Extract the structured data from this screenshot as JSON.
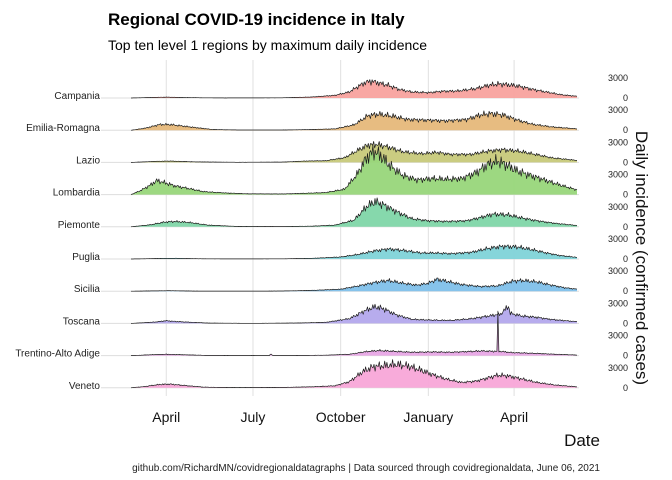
{
  "chart_data": {
    "type": "area",
    "title": "Regional COVID-19 incidence in Italy",
    "subtitle": "Top ten level 1 regions by maximum daily incidence",
    "xlabel": "Date",
    "ylabel": "Daily incidence (confirmed cases)",
    "caption": "github.com/RichardMN/covidregionaldatagraphs | Data sourced through covidregionaldata, June 06, 2021",
    "date_range": [
      "2020-02-24",
      "2021-06-06"
    ],
    "x_ticks": [
      {
        "date": "2020-04-01",
        "label": "April"
      },
      {
        "date": "2020-07-01",
        "label": "July"
      },
      {
        "date": "2020-10-01",
        "label": "October"
      },
      {
        "date": "2021-01-01",
        "label": "January"
      },
      {
        "date": "2021-04-01",
        "label": "April"
      }
    ],
    "y_ticks": [
      0,
      3000
    ],
    "y_tick_labels": [
      "0",
      "3000"
    ],
    "grid": true,
    "series": [
      {
        "name": "Campania",
        "color": "#f8a29e",
        "points": [
          [
            "2020-02-24",
            0
          ],
          [
            "2020-03-20",
            90
          ],
          [
            "2020-04-01",
            130
          ],
          [
            "2020-04-20",
            60
          ],
          [
            "2020-06-01",
            8
          ],
          [
            "2020-08-01",
            30
          ],
          [
            "2020-09-01",
            150
          ],
          [
            "2020-09-25",
            400
          ],
          [
            "2020-10-10",
            900
          ],
          [
            "2020-10-20",
            1800
          ],
          [
            "2020-10-28",
            2400
          ],
          [
            "2020-11-03",
            2500
          ],
          [
            "2020-11-10",
            2250
          ],
          [
            "2020-11-20",
            1900
          ],
          [
            "2020-12-01",
            1300
          ],
          [
            "2020-12-15",
            900
          ],
          [
            "2021-01-01",
            800
          ],
          [
            "2021-01-15",
            1000
          ],
          [
            "2021-02-01",
            1050
          ],
          [
            "2021-02-20",
            1400
          ],
          [
            "2021-03-05",
            1900
          ],
          [
            "2021-03-15",
            2100
          ],
          [
            "2021-03-25",
            2000
          ],
          [
            "2021-04-05",
            1800
          ],
          [
            "2021-04-20",
            1300
          ],
          [
            "2021-05-05",
            900
          ],
          [
            "2021-05-20",
            500
          ],
          [
            "2021-06-06",
            250
          ]
        ]
      },
      {
        "name": "Emilia-Romagna",
        "color": "#e6b87a",
        "points": [
          [
            "2020-02-24",
            0
          ],
          [
            "2020-03-10",
            300
          ],
          [
            "2020-03-25",
            850
          ],
          [
            "2020-04-05",
            850
          ],
          [
            "2020-04-25",
            500
          ],
          [
            "2020-05-20",
            100
          ],
          [
            "2020-06-15",
            30
          ],
          [
            "2020-08-01",
            30
          ],
          [
            "2020-09-01",
            100
          ],
          [
            "2020-09-25",
            200
          ],
          [
            "2020-10-15",
            800
          ],
          [
            "2020-10-30",
            2200
          ],
          [
            "2020-11-10",
            2400
          ],
          [
            "2020-11-25",
            2100
          ],
          [
            "2020-12-10",
            1600
          ],
          [
            "2021-01-01",
            1500
          ],
          [
            "2021-01-20",
            1400
          ],
          [
            "2021-02-10",
            1600
          ],
          [
            "2021-02-25",
            2300
          ],
          [
            "2021-03-08",
            2500
          ],
          [
            "2021-03-20",
            2300
          ],
          [
            "2021-04-05",
            1500
          ],
          [
            "2021-04-20",
            900
          ],
          [
            "2021-05-10",
            500
          ],
          [
            "2021-06-06",
            200
          ]
        ]
      },
      {
        "name": "Lazio",
        "color": "#c7c97a",
        "points": [
          [
            "2020-02-24",
            0
          ],
          [
            "2020-03-20",
            150
          ],
          [
            "2020-04-05",
            200
          ],
          [
            "2020-05-01",
            80
          ],
          [
            "2020-06-15",
            20
          ],
          [
            "2020-08-01",
            50
          ],
          [
            "2020-08-25",
            200
          ],
          [
            "2020-09-15",
            250
          ],
          [
            "2020-10-05",
            700
          ],
          [
            "2020-10-20",
            1900
          ],
          [
            "2020-10-30",
            2600
          ],
          [
            "2020-11-08",
            2700
          ],
          [
            "2020-11-20",
            2300
          ],
          [
            "2020-12-05",
            1600
          ],
          [
            "2020-12-25",
            1300
          ],
          [
            "2021-01-10",
            1500
          ],
          [
            "2021-01-25",
            1200
          ],
          [
            "2021-02-15",
            1200
          ],
          [
            "2021-03-05",
            1700
          ],
          [
            "2021-03-20",
            1900
          ],
          [
            "2021-04-05",
            1700
          ],
          [
            "2021-04-20",
            1300
          ],
          [
            "2021-05-10",
            700
          ],
          [
            "2021-06-06",
            300
          ]
        ]
      },
      {
        "name": "Lombardia",
        "color": "#98d67a",
        "points": [
          [
            "2020-02-24",
            0
          ],
          [
            "2020-03-05",
            600
          ],
          [
            "2020-03-15",
            1400
          ],
          [
            "2020-03-22",
            2100
          ],
          [
            "2020-03-30",
            1800
          ],
          [
            "2020-04-10",
            1300
          ],
          [
            "2020-04-25",
            900
          ],
          [
            "2020-05-10",
            450
          ],
          [
            "2020-06-01",
            250
          ],
          [
            "2020-06-25",
            120
          ],
          [
            "2020-08-01",
            100
          ],
          [
            "2020-08-25",
            200
          ],
          [
            "2020-09-15",
            300
          ],
          [
            "2020-10-05",
            800
          ],
          [
            "2020-10-18",
            3000
          ],
          [
            "2020-10-28",
            5500
          ],
          [
            "2020-11-05",
            6500
          ],
          [
            "2020-11-12",
            5800
          ],
          [
            "2020-11-22",
            4300
          ],
          [
            "2020-12-05",
            2900
          ],
          [
            "2020-12-20",
            2200
          ],
          [
            "2021-01-05",
            2400
          ],
          [
            "2021-01-20",
            2300
          ],
          [
            "2021-02-05",
            2400
          ],
          [
            "2021-02-20",
            3300
          ],
          [
            "2021-03-05",
            4600
          ],
          [
            "2021-03-15",
            5000
          ],
          [
            "2021-03-25",
            4400
          ],
          [
            "2021-04-05",
            3500
          ],
          [
            "2021-04-20",
            2800
          ],
          [
            "2021-05-05",
            2100
          ],
          [
            "2021-05-20",
            1400
          ],
          [
            "2021-06-06",
            700
          ]
        ]
      },
      {
        "name": "Piemonte",
        "color": "#7fd6a8",
        "points": [
          [
            "2020-02-24",
            0
          ],
          [
            "2020-03-15",
            300
          ],
          [
            "2020-03-30",
            700
          ],
          [
            "2020-04-10",
            800
          ],
          [
            "2020-04-25",
            650
          ],
          [
            "2020-05-15",
            250
          ],
          [
            "2020-06-15",
            50
          ],
          [
            "2020-08-01",
            30
          ],
          [
            "2020-09-01",
            100
          ],
          [
            "2020-09-25",
            250
          ],
          [
            "2020-10-15",
            1000
          ],
          [
            "2020-10-28",
            3000
          ],
          [
            "2020-11-06",
            3800
          ],
          [
            "2020-11-15",
            3300
          ],
          [
            "2020-11-28",
            2300
          ],
          [
            "2020-12-15",
            1200
          ],
          [
            "2021-01-01",
            900
          ],
          [
            "2021-01-20",
            800
          ],
          [
            "2021-02-10",
            900
          ],
          [
            "2021-02-25",
            1400
          ],
          [
            "2021-03-10",
            1900
          ],
          [
            "2021-03-25",
            1800
          ],
          [
            "2021-04-10",
            1300
          ],
          [
            "2021-04-25",
            900
          ],
          [
            "2021-05-15",
            500
          ],
          [
            "2021-06-06",
            200
          ]
        ]
      },
      {
        "name": "Puglia",
        "color": "#7fd3d8",
        "points": [
          [
            "2020-02-24",
            0
          ],
          [
            "2020-03-25",
            80
          ],
          [
            "2020-04-10",
            100
          ],
          [
            "2020-05-05",
            40
          ],
          [
            "2020-06-15",
            10
          ],
          [
            "2020-08-01",
            30
          ],
          [
            "2020-09-01",
            100
          ],
          [
            "2020-10-01",
            300
          ],
          [
            "2020-10-20",
            700
          ],
          [
            "2020-11-05",
            1200
          ],
          [
            "2020-11-20",
            1500
          ],
          [
            "2020-12-05",
            1300
          ],
          [
            "2020-12-25",
            900
          ],
          [
            "2021-01-10",
            900
          ],
          [
            "2021-01-25",
            800
          ],
          [
            "2021-02-15",
            1000
          ],
          [
            "2021-03-05",
            1600
          ],
          [
            "2021-03-20",
            1900
          ],
          [
            "2021-04-05",
            1800
          ],
          [
            "2021-04-20",
            1400
          ],
          [
            "2021-05-05",
            900
          ],
          [
            "2021-05-20",
            500
          ],
          [
            "2021-06-06",
            250
          ]
        ]
      },
      {
        "name": "Sicilia",
        "color": "#7fc0ea",
        "points": [
          [
            "2020-02-24",
            0
          ],
          [
            "2020-03-25",
            60
          ],
          [
            "2020-04-05",
            80
          ],
          [
            "2020-05-01",
            20
          ],
          [
            "2020-07-01",
            10
          ],
          [
            "2020-08-01",
            30
          ],
          [
            "2020-09-01",
            120
          ],
          [
            "2020-10-01",
            300
          ],
          [
            "2020-10-20",
            800
          ],
          [
            "2020-11-05",
            1300
          ],
          [
            "2020-11-20",
            1600
          ],
          [
            "2020-12-05",
            1200
          ],
          [
            "2020-12-20",
            900
          ],
          [
            "2021-01-01",
            1200
          ],
          [
            "2021-01-10",
            1800
          ],
          [
            "2021-01-20",
            1500
          ],
          [
            "2021-02-05",
            1000
          ],
          [
            "2021-02-25",
            700
          ],
          [
            "2021-03-15",
            800
          ],
          [
            "2021-03-30",
            1500
          ],
          [
            "2021-04-10",
            1600
          ],
          [
            "2021-04-25",
            1400
          ],
          [
            "2021-05-10",
            900
          ],
          [
            "2021-05-25",
            500
          ],
          [
            "2021-06-06",
            300
          ]
        ]
      },
      {
        "name": "Toscana",
        "color": "#b3a8ec",
        "points": [
          [
            "2020-02-24",
            0
          ],
          [
            "2020-03-20",
            200
          ],
          [
            "2020-04-01",
            400
          ],
          [
            "2020-04-15",
            250
          ],
          [
            "2020-05-15",
            50
          ],
          [
            "2020-07-01",
            10
          ],
          [
            "2020-08-15",
            60
          ],
          [
            "2020-09-15",
            150
          ],
          [
            "2020-10-10",
            700
          ],
          [
            "2020-10-28",
            2000
          ],
          [
            "2020-11-06",
            2500
          ],
          [
            "2020-11-15",
            2200
          ],
          [
            "2020-11-28",
            1300
          ],
          [
            "2020-12-15",
            600
          ],
          [
            "2021-01-05",
            500
          ],
          [
            "2021-01-25",
            450
          ],
          [
            "2021-02-15",
            700
          ],
          [
            "2021-03-05",
            1100
          ],
          [
            "2021-03-18",
            1400
          ],
          [
            "2021-03-26",
            2600
          ],
          [
            "2021-03-28",
            1500
          ],
          [
            "2021-04-10",
            1100
          ],
          [
            "2021-04-25",
            900
          ],
          [
            "2021-05-10",
            600
          ],
          [
            "2021-06-06",
            250
          ]
        ]
      },
      {
        "name": "Trentino-Alto Adige",
        "color": "#e8a6e6",
        "points": [
          [
            "2020-02-24",
            0
          ],
          [
            "2020-03-20",
            150
          ],
          [
            "2020-04-01",
            200
          ],
          [
            "2020-04-20",
            120
          ],
          [
            "2020-05-15",
            30
          ],
          [
            "2020-06-25",
            10
          ],
          [
            "2020-07-18",
            0
          ],
          [
            "2020-07-20",
            250
          ],
          [
            "2020-07-22",
            0
          ],
          [
            "2020-08-15",
            20
          ],
          [
            "2020-09-15",
            60
          ],
          [
            "2020-10-10",
            200
          ],
          [
            "2020-10-28",
            600
          ],
          [
            "2020-11-10",
            750
          ],
          [
            "2020-11-25",
            650
          ],
          [
            "2020-12-15",
            500
          ],
          [
            "2021-01-05",
            550
          ],
          [
            "2021-01-25",
            500
          ],
          [
            "2021-02-10",
            600
          ],
          [
            "2021-02-25",
            700
          ],
          [
            "2021-03-08",
            650
          ],
          [
            "2021-03-14",
            650
          ],
          [
            "2021-03-15",
            5800
          ],
          [
            "2021-03-16",
            650
          ],
          [
            "2021-03-30",
            450
          ],
          [
            "2021-04-20",
            350
          ],
          [
            "2021-05-15",
            200
          ],
          [
            "2021-06-06",
            80
          ]
        ]
      },
      {
        "name": "Veneto",
        "color": "#f8a6d8",
        "points": [
          [
            "2020-02-24",
            0
          ],
          [
            "2020-03-10",
            200
          ],
          [
            "2020-03-25",
            500
          ],
          [
            "2020-04-05",
            550
          ],
          [
            "2020-04-20",
            350
          ],
          [
            "2020-05-10",
            100
          ],
          [
            "2020-06-15",
            30
          ],
          [
            "2020-08-01",
            60
          ],
          [
            "2020-09-01",
            150
          ],
          [
            "2020-09-25",
            300
          ],
          [
            "2020-10-10",
            900
          ],
          [
            "2020-10-25",
            2500
          ],
          [
            "2020-11-05",
            3200
          ],
          [
            "2020-11-15",
            3300
          ],
          [
            "2020-11-28",
            3500
          ],
          [
            "2020-12-10",
            3300
          ],
          [
            "2020-12-25",
            2600
          ],
          [
            "2021-01-05",
            2000
          ],
          [
            "2021-01-20",
            1300
          ],
          [
            "2021-02-05",
            800
          ],
          [
            "2021-02-20",
            1000
          ],
          [
            "2021-03-05",
            1500
          ],
          [
            "2021-03-15",
            1900
          ],
          [
            "2021-03-25",
            1800
          ],
          [
            "2021-04-10",
            1300
          ],
          [
            "2021-04-25",
            800
          ],
          [
            "2021-05-15",
            400
          ],
          [
            "2021-06-06",
            150
          ]
        ]
      }
    ]
  }
}
